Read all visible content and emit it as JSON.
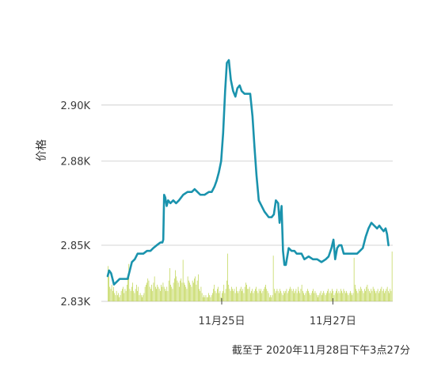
{
  "chart_data": {
    "type": "line",
    "ylabel": "价格",
    "ylim": [
      2.83,
      2.9335
    ],
    "yticks": [
      {
        "value": 2.83,
        "label": "2.83K"
      },
      {
        "value": 2.85,
        "label": "2.85K"
      },
      {
        "value": 2.88,
        "label": "2.88K"
      },
      {
        "value": 2.9,
        "label": "2.90K"
      }
    ],
    "xlim": [
      0,
      100
    ],
    "xticks": [
      {
        "value": 40,
        "label": "11月25日"
      },
      {
        "value": 79,
        "label": "11月27日"
      }
    ],
    "grid": true,
    "colors": {
      "price": "#1a93ad",
      "volume": "#b9d03f",
      "grid": "#d9d9d9"
    },
    "price_series": [
      [
        0,
        2.839
      ],
      [
        0.5,
        2.841
      ],
      [
        1.2,
        2.84
      ],
      [
        2.2,
        2.836
      ],
      [
        3.2,
        2.837
      ],
      [
        4.2,
        2.838
      ],
      [
        5.5,
        2.838
      ],
      [
        7,
        2.838
      ],
      [
        8.5,
        2.844
      ],
      [
        9.5,
        2.845
      ],
      [
        10.5,
        2.847
      ],
      [
        11.5,
        2.847
      ],
      [
        12.5,
        2.847
      ],
      [
        13.8,
        2.848
      ],
      [
        15,
        2.848
      ],
      [
        16,
        2.849
      ],
      [
        17.2,
        2.85
      ],
      [
        18.5,
        2.851
      ],
      [
        19.2,
        2.851
      ],
      [
        19.5,
        2.852
      ],
      [
        19.8,
        2.868
      ],
      [
        20.2,
        2.867
      ],
      [
        20.7,
        2.864
      ],
      [
        21.2,
        2.866
      ],
      [
        22,
        2.865
      ],
      [
        23,
        2.866
      ],
      [
        24,
        2.865
      ],
      [
        25,
        2.866
      ],
      [
        26.5,
        2.868
      ],
      [
        28,
        2.869
      ],
      [
        29.5,
        2.869
      ],
      [
        30.5,
        2.87
      ],
      [
        31.5,
        2.869
      ],
      [
        32.5,
        2.868
      ],
      [
        34,
        2.868
      ],
      [
        35.5,
        2.869
      ],
      [
        36.5,
        2.869
      ],
      [
        37.5,
        2.871
      ],
      [
        38.2,
        2.873
      ],
      [
        39,
        2.876
      ],
      [
        39.8,
        2.88
      ],
      [
        40.5,
        2.89
      ],
      [
        41.2,
        2.905
      ],
      [
        41.8,
        2.915
      ],
      [
        42.5,
        2.916
      ],
      [
        43.2,
        2.909
      ],
      [
        44,
        2.905
      ],
      [
        44.8,
        2.903
      ],
      [
        45.5,
        2.906
      ],
      [
        46.3,
        2.907
      ],
      [
        47,
        2.905
      ],
      [
        48,
        2.904
      ],
      [
        49,
        2.904
      ],
      [
        50,
        2.904
      ],
      [
        50.8,
        2.896
      ],
      [
        51.5,
        2.885
      ],
      [
        52.2,
        2.875
      ],
      [
        53,
        2.866
      ],
      [
        54,
        2.864
      ],
      [
        55,
        2.862
      ],
      [
        56.5,
        2.86
      ],
      [
        57.5,
        2.86
      ],
      [
        58.3,
        2.861
      ],
      [
        59,
        2.866
      ],
      [
        59.8,
        2.865
      ],
      [
        60.3,
        2.858
      ],
      [
        61,
        2.864
      ],
      [
        61.5,
        2.848
      ],
      [
        62,
        2.843
      ],
      [
        62.5,
        2.843
      ],
      [
        63.5,
        2.849
      ],
      [
        64.5,
        2.848
      ],
      [
        65.5,
        2.848
      ],
      [
        66.3,
        2.847
      ],
      [
        67,
        2.847
      ],
      [
        68,
        2.847
      ],
      [
        69,
        2.845
      ],
      [
        70.5,
        2.846
      ],
      [
        72,
        2.845
      ],
      [
        73.5,
        2.845
      ],
      [
        75,
        2.844
      ],
      [
        76.5,
        2.845
      ],
      [
        77.5,
        2.846
      ],
      [
        78.5,
        2.849
      ],
      [
        79.2,
        2.852
      ],
      [
        79.8,
        2.845
      ],
      [
        80.5,
        2.849
      ],
      [
        81.2,
        2.85
      ],
      [
        82,
        2.85
      ],
      [
        82.8,
        2.847
      ],
      [
        84,
        2.847
      ],
      [
        85.5,
        2.847
      ],
      [
        87.5,
        2.847
      ],
      [
        88.5,
        2.848
      ],
      [
        89.5,
        2.849
      ],
      [
        90.5,
        2.853
      ],
      [
        91.5,
        2.856
      ],
      [
        92.5,
        2.858
      ],
      [
        93.5,
        2.857
      ],
      [
        94.5,
        2.856
      ],
      [
        95.3,
        2.857
      ],
      [
        96,
        2.856
      ],
      [
        96.8,
        2.855
      ],
      [
        97.5,
        2.856
      ],
      [
        98,
        2.854
      ],
      [
        98.5,
        2.85
      ]
    ],
    "volume_max": 2.0,
    "volume_bars": [
      0.85,
      0.6,
      0.35,
      0.3,
      0.4,
      0.25,
      0.35,
      0.2,
      0.15,
      0.25,
      0.15,
      0.2,
      0.1,
      0.15,
      0.25,
      0.3,
      0.35,
      0.2,
      0.3,
      0.25,
      0.4,
      0.55,
      0.9,
      0.3,
      0.25,
      0.35,
      0.45,
      0.25,
      0.2,
      0.3,
      0.4,
      0.25,
      0.35,
      0.15,
      0.2,
      0.15,
      0.1,
      0.15,
      0.2,
      0.35,
      0.4,
      0.45,
      0.55,
      0.5,
      0.35,
      0.3,
      0.4,
      0.25,
      0.45,
      0.6,
      0.35,
      0.3,
      0.4,
      0.35,
      0.3,
      0.25,
      0.4,
      0.35,
      0.45,
      0.35,
      0.3,
      0.25,
      0.35,
      0.25,
      0.5,
      0.8,
      0.4,
      0.35,
      0.3,
      0.45,
      0.55,
      0.75,
      0.6,
      0.5,
      0.45,
      0.35,
      0.5,
      0.55,
      0.45,
      1.0,
      0.45,
      0.4,
      0.35,
      0.3,
      0.6,
      0.5,
      0.45,
      0.4,
      0.35,
      0.5,
      0.45,
      0.55,
      0.6,
      0.4,
      0.5,
      0.65,
      0.3,
      0.25,
      0.35,
      0.2,
      0.1,
      0.15,
      0.1,
      0.15,
      0.1,
      0.1,
      0.2,
      0.15,
      0.1,
      0.15,
      0.2,
      0.3,
      0.4,
      0.25,
      0.2,
      0.3,
      0.35,
      0.2,
      0.25,
      0.1,
      0.2,
      0.25,
      0.4,
      0.2,
      0.3,
      0.5,
      1.15,
      0.4,
      0.3,
      0.25,
      0.35,
      0.3,
      0.25,
      0.3,
      0.2,
      0.35,
      0.25,
      0.2,
      0.25,
      0.3,
      0.35,
      0.25,
      0.3,
      0.2,
      0.35,
      0.45,
      0.4,
      0.3,
      0.3,
      0.35,
      0.2,
      0.25,
      0.3,
      0.2,
      0.25,
      0.3,
      0.35,
      0.25,
      0.2,
      0.3,
      0.25,
      0.3,
      0.2,
      0.25,
      0.3,
      0.35,
      0.4,
      0.3,
      0.25,
      0.2,
      0.1,
      0.15,
      0.1,
      0.15,
      1.1,
      0.3,
      0.2,
      0.25,
      0.3,
      0.25,
      0.2,
      0.3,
      0.25,
      0.2,
      0.15,
      0.25,
      0.2,
      0.25,
      0.3,
      0.2,
      0.25,
      0.3,
      0.35,
      0.3,
      0.25,
      0.3,
      0.2,
      0.25,
      0.3,
      0.2,
      0.35,
      0.25,
      0.2,
      0.3,
      0.4,
      0.25,
      0.2,
      0.15,
      0.2,
      0.25,
      0.3,
      0.25,
      0.2,
      0.15,
      0.2,
      0.25,
      0.3,
      0.2,
      0.25,
      0.2,
      0.15,
      0.1,
      0.15,
      0.2,
      0.25,
      0.15,
      0.2,
      0.25,
      0.2,
      0.15,
      0.2,
      0.25,
      0.3,
      0.2,
      0.25,
      0.2,
      0.3,
      0.25,
      0.15,
      0.2,
      0.25,
      0.3,
      0.2,
      0.25,
      0.2,
      0.3,
      0.25,
      0.2,
      0.3,
      0.25,
      0.2,
      0.25,
      0.2,
      0.15,
      0.2,
      0.25,
      0.2,
      0.15,
      0.2,
      1.05,
      0.4,
      0.3,
      0.25,
      0.2,
      0.3,
      0.25,
      0.35,
      0.3,
      0.25,
      0.2,
      0.3,
      0.25,
      0.35,
      0.4,
      0.3,
      0.25,
      0.2,
      0.3,
      0.25,
      0.35,
      0.3,
      0.25,
      0.2,
      0.25,
      0.3,
      0.2,
      0.25,
      0.3,
      0.35,
      0.25,
      0.3,
      0.2,
      0.25,
      0.3,
      0.35,
      0.25,
      0.2,
      0.3,
      0.25,
      1.2
    ]
  },
  "footer": {
    "timestamp": "截至于 2020年11月28日下午3点27分"
  }
}
